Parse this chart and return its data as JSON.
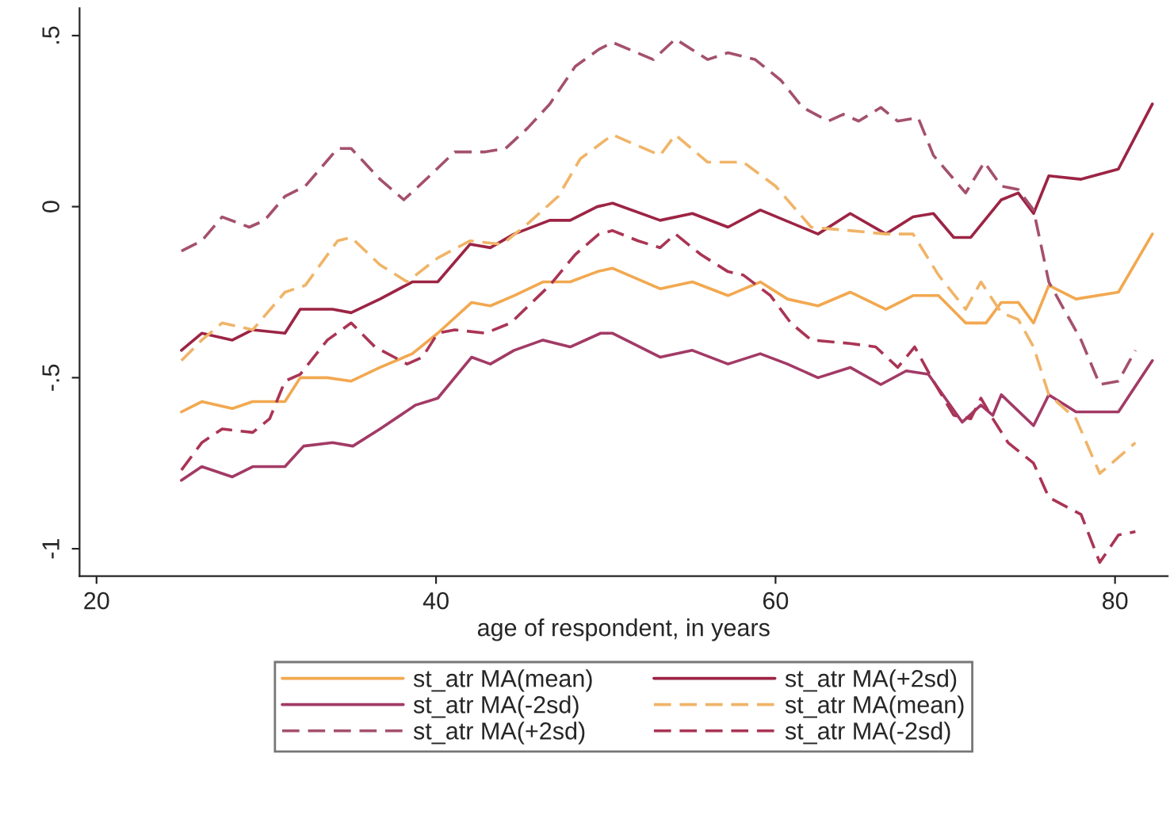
{
  "chart_data": {
    "type": "line",
    "xlabel": "age of respondent, in years",
    "xlim": [
      19,
      83.1
    ],
    "xticks": [
      20,
      40,
      60,
      80
    ],
    "ylim": [
      -1.08,
      0.58
    ],
    "yticks": [
      {
        "value": 0.5,
        "label": ".5"
      },
      0,
      {
        "value": -0.5,
        "label": "-.5"
      },
      {
        "value": -1,
        "label": "-1"
      }
    ],
    "grid": false,
    "legend": "bottom",
    "series": [
      {
        "name": "st_atr MA(mean)",
        "color": "#f2a850",
        "line_style": "solid",
        "x": [
          25.0,
          26.2,
          28.0,
          29.2,
          31.1,
          32.0,
          33.6,
          35.0,
          36.7,
          38.6,
          40.1,
          42.1,
          43.2,
          44.6,
          46.3,
          47.9,
          49.5,
          50.4,
          53.2,
          55.1,
          57.2,
          59.1,
          60.7,
          62.5,
          64.4,
          66.5,
          68.1,
          69.6,
          71.2,
          72.4,
          73.3,
          74.3,
          75.2,
          76.1,
          77.7,
          80.2,
          82.2
        ],
        "values": [
          -0.6,
          -0.57,
          -0.59,
          -0.57,
          -0.57,
          -0.5,
          -0.5,
          -0.51,
          -0.47,
          -0.43,
          -0.37,
          -0.28,
          -0.29,
          -0.26,
          -0.22,
          -0.22,
          -0.19,
          -0.18,
          -0.24,
          -0.22,
          -0.26,
          -0.22,
          -0.27,
          -0.29,
          -0.25,
          -0.3,
          -0.26,
          -0.26,
          -0.34,
          -0.34,
          -0.28,
          -0.28,
          -0.34,
          -0.23,
          -0.27,
          -0.25,
          -0.08
        ]
      },
      {
        "name": "st_atr MA(+2sd)",
        "color": "#9c2444",
        "line_style": "solid",
        "x": [
          25.0,
          26.2,
          28.0,
          29.2,
          31.1,
          32.0,
          33.9,
          35.0,
          36.7,
          38.6,
          40.1,
          42.0,
          43.2,
          44.6,
          46.7,
          47.9,
          49.5,
          50.4,
          53.2,
          55.1,
          57.2,
          59.1,
          62.5,
          64.4,
          66.5,
          68.1,
          69.3,
          70.5,
          71.5,
          73.3,
          74.3,
          75.2,
          76.1,
          78.0,
          80.2,
          82.2
        ],
        "values": [
          -0.42,
          -0.37,
          -0.39,
          -0.36,
          -0.37,
          -0.3,
          -0.3,
          -0.31,
          -0.27,
          -0.22,
          -0.22,
          -0.11,
          -0.12,
          -0.08,
          -0.04,
          -0.04,
          0.0,
          0.01,
          -0.04,
          -0.02,
          -0.06,
          -0.01,
          -0.08,
          -0.02,
          -0.08,
          -0.03,
          -0.02,
          -0.09,
          -0.09,
          0.02,
          0.04,
          -0.02,
          0.09,
          0.08,
          0.11,
          0.3
        ]
      },
      {
        "name": "st_atr MA(-2sd)",
        "color": "#a23a66",
        "line_style": "solid",
        "x": [
          25.0,
          26.2,
          28.0,
          29.2,
          31.1,
          32.2,
          33.9,
          35.1,
          36.7,
          38.8,
          40.1,
          42.1,
          43.2,
          44.6,
          46.3,
          47.9,
          49.7,
          50.4,
          53.2,
          55.1,
          57.2,
          59.1,
          60.7,
          62.5,
          64.4,
          66.2,
          67.7,
          69.0,
          71.0,
          72.1,
          72.8,
          73.3,
          75.2,
          76.1,
          77.7,
          80.2,
          82.2
        ],
        "values": [
          -0.8,
          -0.76,
          -0.79,
          -0.76,
          -0.76,
          -0.7,
          -0.69,
          -0.7,
          -0.65,
          -0.58,
          -0.56,
          -0.44,
          -0.46,
          -0.42,
          -0.39,
          -0.41,
          -0.37,
          -0.37,
          -0.44,
          -0.42,
          -0.46,
          -0.43,
          -0.46,
          -0.5,
          -0.47,
          -0.52,
          -0.48,
          -0.49,
          -0.63,
          -0.58,
          -0.61,
          -0.55,
          -0.64,
          -0.55,
          -0.6,
          -0.6,
          -0.45
        ]
      },
      {
        "name": "st_atr MA(mean)",
        "color": "#f0b468",
        "line_style": "dashed",
        "x": [
          25.0,
          26.2,
          27.4,
          29.2,
          31.1,
          32.3,
          34.2,
          35.0,
          36.7,
          38.3,
          40.1,
          42.0,
          43.9,
          45.4,
          47.2,
          48.5,
          50.4,
          53.2,
          54.1,
          56.0,
          58.1,
          60.0,
          62.1,
          64.4,
          66.5,
          68.1,
          69.6,
          71.2,
          72.1,
          73.3,
          74.3,
          75.2,
          76.1,
          77.7,
          79.1,
          81.2
        ],
        "values": [
          -0.45,
          -0.39,
          -0.34,
          -0.36,
          -0.25,
          -0.23,
          -0.1,
          -0.09,
          -0.17,
          -0.22,
          -0.15,
          -0.1,
          -0.11,
          -0.05,
          0.03,
          0.14,
          0.21,
          0.15,
          0.21,
          0.13,
          0.13,
          0.06,
          -0.06,
          -0.07,
          -0.08,
          -0.08,
          -0.2,
          -0.3,
          -0.22,
          -0.31,
          -0.33,
          -0.41,
          -0.55,
          -0.62,
          -0.78,
          -0.69
        ]
      },
      {
        "name": "st_atr MA(+2sd)",
        "color": "#a4506e",
        "line_style": "dashed",
        "x": [
          25.0,
          26.2,
          27.4,
          29.0,
          29.9,
          31.1,
          32.3,
          34.2,
          35.0,
          36.7,
          38.1,
          39.2,
          41.1,
          42.9,
          44.1,
          45.4,
          46.7,
          48.2,
          49.6,
          50.4,
          52.8,
          54.1,
          56.0,
          57.2,
          58.8,
          60.3,
          61.6,
          63.1,
          64.0,
          64.9,
          66.2,
          67.2,
          68.4,
          69.3,
          71.2,
          72.3,
          73.3,
          74.3,
          75.2,
          76.1,
          77.1,
          78.0,
          79.1,
          80.2,
          81.2
        ],
        "values": [
          -0.13,
          -0.1,
          -0.03,
          -0.06,
          -0.04,
          0.03,
          0.06,
          0.17,
          0.17,
          0.08,
          0.02,
          0.07,
          0.16,
          0.16,
          0.17,
          0.23,
          0.3,
          0.41,
          0.46,
          0.48,
          0.43,
          0.49,
          0.43,
          0.45,
          0.43,
          0.37,
          0.29,
          0.25,
          0.27,
          0.25,
          0.29,
          0.25,
          0.26,
          0.15,
          0.04,
          0.13,
          0.06,
          0.05,
          -0.01,
          -0.22,
          -0.31,
          -0.39,
          -0.52,
          -0.51,
          -0.42
        ]
      },
      {
        "name": "st_atr MA(-2sd)",
        "color": "#aa3454",
        "line_style": "dashed",
        "x": [
          25.0,
          26.2,
          27.4,
          29.2,
          30.2,
          31.1,
          32.0,
          33.6,
          35.0,
          36.4,
          38.3,
          39.2,
          40.1,
          41.1,
          42.9,
          44.4,
          46.7,
          48.2,
          49.6,
          50.4,
          51.9,
          53.2,
          54.1,
          55.6,
          57.2,
          58.1,
          59.7,
          60.9,
          62.1,
          64.4,
          65.9,
          67.2,
          68.2,
          69.3,
          70.5,
          71.5,
          72.1,
          72.8,
          73.7,
          75.2,
          76.1,
          78.0,
          79.1,
          80.2,
          81.2
        ],
        "values": [
          -0.77,
          -0.69,
          -0.65,
          -0.66,
          -0.62,
          -0.51,
          -0.49,
          -0.39,
          -0.34,
          -0.41,
          -0.46,
          -0.44,
          -0.37,
          -0.36,
          -0.37,
          -0.34,
          -0.23,
          -0.14,
          -0.08,
          -0.07,
          -0.1,
          -0.12,
          -0.08,
          -0.14,
          -0.19,
          -0.2,
          -0.26,
          -0.34,
          -0.39,
          -0.4,
          -0.41,
          -0.47,
          -0.41,
          -0.51,
          -0.61,
          -0.62,
          -0.56,
          -0.62,
          -0.69,
          -0.75,
          -0.85,
          -0.9,
          -1.04,
          -0.96,
          -0.95
        ]
      }
    ]
  }
}
